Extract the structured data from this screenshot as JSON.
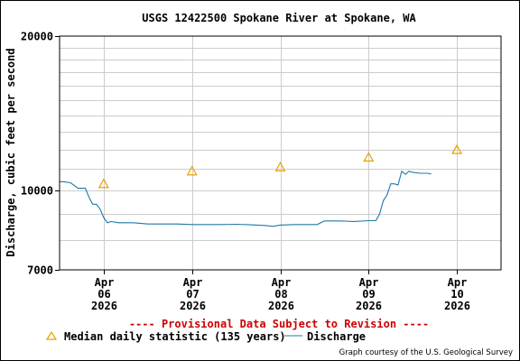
{
  "chart_data": {
    "type": "line",
    "title": "USGS 12422500 Spokane River at Spokane, WA",
    "ylabel": "Discharge, cubic feet per second",
    "xlabel": "",
    "y_scale": "log",
    "ylim": [
      7000,
      20000
    ],
    "y_ticks": [
      {
        "value": 7000,
        "label": "7000"
      },
      {
        "value": 10000,
        "label": "10000"
      },
      {
        "value": 20000,
        "label": "20000"
      }
    ],
    "y_minor_gridlines": [
      8000,
      9000,
      11000,
      12000,
      13000,
      14000,
      15000,
      16000,
      17000,
      18000,
      19000
    ],
    "x_range": [
      "2026-04-05 12:00",
      "2026-04-10 12:00"
    ],
    "x_ticks": [
      {
        "date": "2026-04-06",
        "label": [
          "Apr",
          "06",
          "2026"
        ]
      },
      {
        "date": "2026-04-07",
        "label": [
          "Apr",
          "07",
          "2026"
        ]
      },
      {
        "date": "2026-04-08",
        "label": [
          "Apr",
          "08",
          "2026"
        ]
      },
      {
        "date": "2026-04-09",
        "label": [
          "Apr",
          "09",
          "2026"
        ]
      },
      {
        "date": "2026-04-10",
        "label": [
          "Apr",
          "10",
          "2026"
        ]
      }
    ],
    "grid": true,
    "series": [
      {
        "name": "Discharge",
        "color": "#1f78a8",
        "type": "line",
        "points": [
          [
            "2026-04-05 12:00",
            10400
          ],
          [
            "2026-04-05 13:00",
            10400
          ],
          [
            "2026-04-05 15:00",
            10350
          ],
          [
            "2026-04-05 17:00",
            10100
          ],
          [
            "2026-04-05 19:00",
            10100
          ],
          [
            "2026-04-05 20:00",
            9700
          ],
          [
            "2026-04-05 21:00",
            9400
          ],
          [
            "2026-04-05 22:00",
            9400
          ],
          [
            "2026-04-05 23:00",
            9200
          ],
          [
            "2026-04-06 00:00",
            8850
          ],
          [
            "2026-04-06 01:00",
            8650
          ],
          [
            "2026-04-06 02:00",
            8700
          ],
          [
            "2026-04-06 04:00",
            8650
          ],
          [
            "2026-04-06 08:00",
            8650
          ],
          [
            "2026-04-06 12:00",
            8600
          ],
          [
            "2026-04-06 16:00",
            8600
          ],
          [
            "2026-04-06 20:00",
            8600
          ],
          [
            "2026-04-07 00:00",
            8580
          ],
          [
            "2026-04-07 04:00",
            8580
          ],
          [
            "2026-04-07 08:00",
            8580
          ],
          [
            "2026-04-07 12:00",
            8590
          ],
          [
            "2026-04-07 16:00",
            8570
          ],
          [
            "2026-04-07 20:00",
            8540
          ],
          [
            "2026-04-07 22:00",
            8510
          ],
          [
            "2026-04-08 00:00",
            8560
          ],
          [
            "2026-04-08 04:00",
            8580
          ],
          [
            "2026-04-08 08:00",
            8580
          ],
          [
            "2026-04-08 10:00",
            8580
          ],
          [
            "2026-04-08 12:00",
            8720
          ],
          [
            "2026-04-08 16:00",
            8720
          ],
          [
            "2026-04-08 20:00",
            8700
          ],
          [
            "2026-04-09 00:00",
            8730
          ],
          [
            "2026-04-09 02:00",
            8730
          ],
          [
            "2026-04-09 03:00",
            9000
          ],
          [
            "2026-04-09 04:00",
            9550
          ],
          [
            "2026-04-09 05:00",
            9800
          ],
          [
            "2026-04-09 06:00",
            10300
          ],
          [
            "2026-04-09 07:00",
            10300
          ],
          [
            "2026-04-09 08:00",
            10250
          ],
          [
            "2026-04-09 09:00",
            10900
          ],
          [
            "2026-04-09 10:00",
            10750
          ],
          [
            "2026-04-09 11:00",
            10900
          ],
          [
            "2026-04-09 12:00",
            10850
          ],
          [
            "2026-04-09 14:00",
            10800
          ],
          [
            "2026-04-09 16:00",
            10800
          ],
          [
            "2026-04-09 17:00",
            10770
          ]
        ]
      },
      {
        "name": "Median daily statistic (135 years)",
        "color": "#e8a000",
        "type": "marker",
        "marker": "triangle",
        "points": [
          [
            "2026-04-06 00:00",
            10300
          ],
          [
            "2026-04-07 00:00",
            10900
          ],
          [
            "2026-04-08 00:00",
            11100
          ],
          [
            "2026-04-09 00:00",
            11600
          ],
          [
            "2026-04-10 00:00",
            12000
          ]
        ]
      }
    ],
    "legend_placement": "bottom-left",
    "annotations": {
      "provisional": "---- Provisional Data Subject to Revision ----",
      "provisional_color": "#cc0000",
      "credit": "Graph courtesy of the U.S. Geological Survey"
    }
  }
}
